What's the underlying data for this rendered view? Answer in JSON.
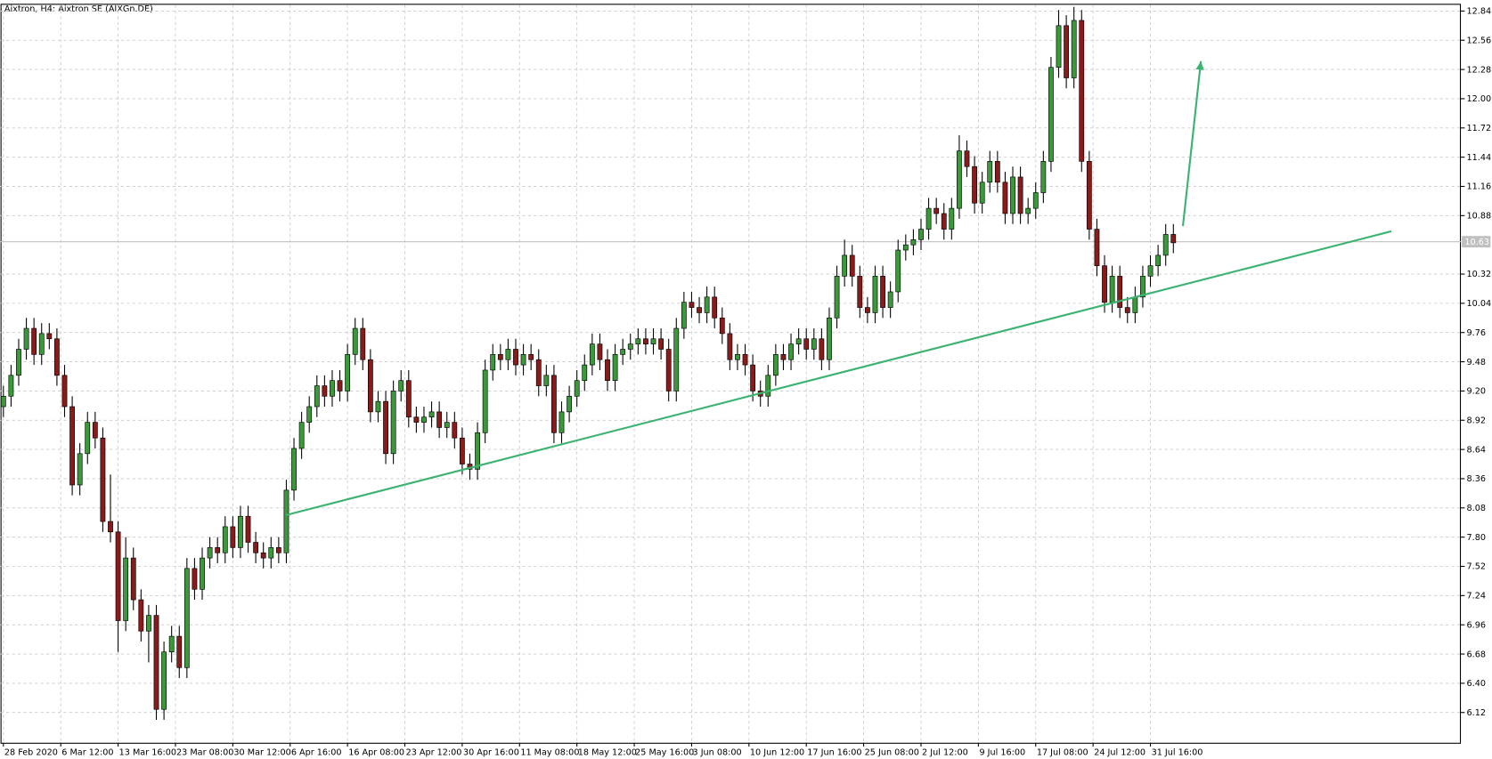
{
  "chart_data": {
    "type": "candlestick",
    "title": "Aixtron, H4:  Aixtron SE (AIXGn.DE)",
    "bull_color": "#3a9a3a",
    "bear_color": "#8b1a1a",
    "wick_color": "#000000",
    "grid": true,
    "xlim": [
      -0.375,
      190.6
    ],
    "ylim": [
      5.83,
      12.9
    ],
    "xticks": [
      {
        "value": 0,
        "label": "28 Feb 2020"
      },
      {
        "value": 7.5,
        "label": "6 Mar 12:00"
      },
      {
        "value": 15,
        "label": "13 Mar 16:00"
      },
      {
        "value": 22.5,
        "label": "23 Mar 08:00"
      },
      {
        "value": 30,
        "label": "30 Mar 12:00"
      },
      {
        "value": 37.5,
        "label": "6 Apr 16:00"
      },
      {
        "value": 45,
        "label": "16 Apr 08:00"
      },
      {
        "value": 52.5,
        "label": "23 Apr 12:00"
      },
      {
        "value": 60,
        "label": "30 Apr 16:00"
      },
      {
        "value": 67.5,
        "label": "11 May 08:00"
      },
      {
        "value": 75,
        "label": "18 May 12:00"
      },
      {
        "value": 82.5,
        "label": "25 May 16:00"
      },
      {
        "value": 90,
        "label": "3 Jun 08:00"
      },
      {
        "value": 97.5,
        "label": "10 Jun 12:00"
      },
      {
        "value": 105,
        "label": "17 Jun 16:00"
      },
      {
        "value": 112.5,
        "label": "25 Jun 08:00"
      },
      {
        "value": 120,
        "label": "2 Jul 12:00"
      },
      {
        "value": 127.5,
        "label": "9 Jul 16:00"
      },
      {
        "value": 135,
        "label": "17 Jul 08:00"
      },
      {
        "value": 142.5,
        "label": "24 Jul 12:00"
      },
      {
        "value": 150,
        "label": "31 Jul 16:00"
      }
    ],
    "yticks": [
      6.12,
      {
        "value": 6.4,
        "label": "6.40"
      },
      6.68,
      6.96,
      7.24,
      7.52,
      {
        "value": 7.8,
        "label": "7.80"
      },
      8.08,
      8.36,
      8.64,
      8.92,
      {
        "value": 9.2,
        "label": "9.20"
      },
      9.48,
      9.76,
      10.04,
      10.32,
      10.88,
      11.16,
      11.44,
      11.72,
      {
        "value": 12,
        "label": "12.00"
      },
      12.28,
      12.56,
      12.84
    ],
    "current_price": {
      "value": 10.63,
      "label": "10.63",
      "color": "#c0c0c0"
    },
    "trend_line": {
      "x": [
        36.9,
        181.5
      ],
      "y": [
        8.01,
        10.73
      ],
      "color": "#3cb371"
    },
    "arrow": {
      "x": [
        154.25,
        156.6
      ],
      "y": [
        10.78,
        12.36
      ],
      "color": "#3cb371"
    },
    "candles": [
      [
        9.05,
        9.25,
        8.95,
        9.15
      ],
      [
        9.15,
        9.45,
        9.05,
        9.35
      ],
      [
        9.35,
        9.7,
        9.25,
        9.6
      ],
      [
        9.6,
        9.9,
        9.5,
        9.8
      ],
      [
        9.8,
        9.9,
        9.45,
        9.55
      ],
      [
        9.55,
        9.85,
        9.45,
        9.75
      ],
      [
        9.75,
        9.85,
        9.6,
        9.7
      ],
      [
        9.7,
        9.8,
        9.25,
        9.35
      ],
      [
        9.35,
        9.45,
        8.95,
        9.05
      ],
      [
        9.05,
        9.15,
        8.2,
        8.3
      ],
      [
        8.3,
        8.7,
        8.2,
        8.6
      ],
      [
        8.6,
        9.0,
        8.5,
        8.9
      ],
      [
        8.9,
        9.0,
        8.65,
        8.75
      ],
      [
        8.75,
        8.85,
        7.85,
        7.95
      ],
      [
        7.95,
        8.4,
        7.75,
        7.85
      ],
      [
        7.85,
        7.95,
        6.7,
        7.0
      ],
      [
        7.0,
        7.8,
        6.9,
        7.6
      ],
      [
        7.6,
        7.7,
        7.1,
        7.2
      ],
      [
        7.2,
        7.3,
        6.8,
        6.9
      ],
      [
        6.9,
        7.15,
        6.6,
        7.05
      ],
      [
        7.05,
        7.15,
        6.05,
        6.15
      ],
      [
        6.15,
        6.8,
        6.05,
        6.7
      ],
      [
        6.7,
        6.95,
        6.6,
        6.85
      ],
      [
        6.85,
        6.95,
        6.45,
        6.55
      ],
      [
        6.55,
        7.6,
        6.45,
        7.5
      ],
      [
        7.5,
        7.6,
        7.2,
        7.3
      ],
      [
        7.3,
        7.7,
        7.2,
        7.6
      ],
      [
        7.6,
        7.8,
        7.5,
        7.7
      ],
      [
        7.7,
        7.8,
        7.55,
        7.65
      ],
      [
        7.65,
        8.0,
        7.55,
        7.9
      ],
      [
        7.9,
        8.0,
        7.6,
        7.7
      ],
      [
        7.7,
        8.1,
        7.6,
        8.0
      ],
      [
        8.0,
        8.1,
        7.65,
        7.75
      ],
      [
        7.75,
        7.85,
        7.55,
        7.65
      ],
      [
        7.65,
        7.75,
        7.5,
        7.6
      ],
      [
        7.6,
        7.8,
        7.5,
        7.7
      ],
      [
        7.7,
        7.8,
        7.55,
        7.65
      ],
      [
        7.65,
        8.35,
        7.55,
        8.25
      ],
      [
        8.25,
        8.75,
        8.15,
        8.65
      ],
      [
        8.65,
        9.0,
        8.55,
        8.9
      ],
      [
        8.9,
        9.15,
        8.8,
        9.05
      ],
      [
        9.05,
        9.35,
        8.95,
        9.25
      ],
      [
        9.25,
        9.35,
        9.05,
        9.15
      ],
      [
        9.15,
        9.4,
        9.05,
        9.3
      ],
      [
        9.3,
        9.4,
        9.1,
        9.2
      ],
      [
        9.2,
        9.65,
        9.1,
        9.55
      ],
      [
        9.55,
        9.9,
        9.45,
        9.8
      ],
      [
        9.8,
        9.9,
        9.4,
        9.5
      ],
      [
        9.5,
        9.6,
        8.9,
        9.0
      ],
      [
        9.0,
        9.2,
        8.9,
        9.1
      ],
      [
        9.1,
        9.2,
        8.5,
        8.6
      ],
      [
        8.6,
        9.3,
        8.5,
        9.2
      ],
      [
        9.2,
        9.4,
        9.1,
        9.3
      ],
      [
        9.3,
        9.4,
        8.85,
        8.95
      ],
      [
        8.95,
        9.05,
        8.8,
        8.9
      ],
      [
        8.9,
        9.05,
        8.8,
        8.95
      ],
      [
        8.95,
        9.1,
        8.85,
        9.0
      ],
      [
        9.0,
        9.1,
        8.75,
        8.85
      ],
      [
        8.85,
        9.0,
        8.75,
        8.9
      ],
      [
        8.9,
        9.0,
        8.65,
        8.75
      ],
      [
        8.75,
        8.85,
        8.4,
        8.5
      ],
      [
        8.5,
        8.6,
        8.35,
        8.45
      ],
      [
        8.45,
        8.9,
        8.35,
        8.8
      ],
      [
        8.8,
        9.5,
        8.7,
        9.4
      ],
      [
        9.4,
        9.65,
        9.3,
        9.55
      ],
      [
        9.55,
        9.65,
        9.4,
        9.5
      ],
      [
        9.5,
        9.7,
        9.4,
        9.6
      ],
      [
        9.6,
        9.7,
        9.35,
        9.45
      ],
      [
        9.45,
        9.65,
        9.35,
        9.55
      ],
      [
        9.55,
        9.65,
        9.4,
        9.5
      ],
      [
        9.5,
        9.6,
        9.15,
        9.25
      ],
      [
        9.25,
        9.45,
        9.15,
        9.35
      ],
      [
        9.35,
        9.45,
        8.7,
        8.8
      ],
      [
        8.8,
        9.1,
        8.7,
        9.0
      ],
      [
        9.0,
        9.25,
        8.9,
        9.15
      ],
      [
        9.15,
        9.4,
        9.05,
        9.3
      ],
      [
        9.3,
        9.55,
        9.2,
        9.45
      ],
      [
        9.45,
        9.75,
        9.35,
        9.65
      ],
      [
        9.65,
        9.75,
        9.4,
        9.5
      ],
      [
        9.5,
        9.6,
        9.2,
        9.3
      ],
      [
        9.3,
        9.65,
        9.2,
        9.55
      ],
      [
        9.55,
        9.7,
        9.45,
        9.6
      ],
      [
        9.6,
        9.75,
        9.5,
        9.65
      ],
      [
        9.65,
        9.8,
        9.55,
        9.7
      ],
      [
        9.7,
        9.8,
        9.55,
        9.65
      ],
      [
        9.65,
        9.8,
        9.55,
        9.7
      ],
      [
        9.7,
        9.8,
        9.5,
        9.6
      ],
      [
        9.6,
        9.7,
        9.1,
        9.2
      ],
      [
        9.2,
        9.9,
        9.1,
        9.8
      ],
      [
        9.8,
        10.15,
        9.7,
        10.05
      ],
      [
        10.05,
        10.15,
        9.9,
        10.0
      ],
      [
        10.0,
        10.1,
        9.85,
        9.95
      ],
      [
        9.95,
        10.2,
        9.85,
        10.1
      ],
      [
        10.1,
        10.2,
        9.8,
        9.9
      ],
      [
        9.9,
        10.0,
        9.65,
        9.75
      ],
      [
        9.75,
        9.85,
        9.4,
        9.5
      ],
      [
        9.5,
        9.65,
        9.4,
        9.55
      ],
      [
        9.55,
        9.65,
        9.35,
        9.45
      ],
      [
        9.45,
        9.55,
        9.1,
        9.2
      ],
      [
        9.2,
        9.3,
        9.05,
        9.15
      ],
      [
        9.15,
        9.45,
        9.05,
        9.35
      ],
      [
        9.35,
        9.65,
        9.25,
        9.55
      ],
      [
        9.55,
        9.65,
        9.4,
        9.5
      ],
      [
        9.5,
        9.75,
        9.4,
        9.65
      ],
      [
        9.65,
        9.8,
        9.55,
        9.7
      ],
      [
        9.7,
        9.8,
        9.5,
        9.6
      ],
      [
        9.6,
        9.8,
        9.5,
        9.7
      ],
      [
        9.7,
        9.8,
        9.4,
        9.5
      ],
      [
        9.5,
        10.0,
        9.4,
        9.9
      ],
      [
        9.9,
        10.4,
        9.8,
        10.3
      ],
      [
        10.3,
        10.65,
        10.2,
        10.5
      ],
      [
        10.5,
        10.6,
        10.2,
        10.3
      ],
      [
        10.3,
        10.4,
        9.9,
        10.0
      ],
      [
        10.0,
        10.1,
        9.85,
        9.95
      ],
      [
        9.95,
        10.4,
        9.85,
        10.3
      ],
      [
        10.3,
        10.4,
        9.9,
        10.0
      ],
      [
        10.0,
        10.25,
        9.9,
        10.15
      ],
      [
        10.15,
        10.65,
        10.05,
        10.55
      ],
      [
        10.55,
        10.7,
        10.45,
        10.6
      ],
      [
        10.6,
        10.75,
        10.5,
        10.65
      ],
      [
        10.65,
        10.85,
        10.55,
        10.75
      ],
      [
        10.75,
        11.05,
        10.65,
        10.95
      ],
      [
        10.95,
        11.05,
        10.8,
        10.9
      ],
      [
        10.9,
        11.0,
        10.65,
        10.75
      ],
      [
        10.75,
        11.05,
        10.65,
        10.95
      ],
      [
        10.95,
        11.65,
        10.85,
        11.5
      ],
      [
        11.5,
        11.6,
        11.25,
        11.35
      ],
      [
        11.35,
        11.45,
        10.9,
        11.0
      ],
      [
        11.0,
        11.3,
        10.9,
        11.2
      ],
      [
        11.2,
        11.5,
        11.1,
        11.4
      ],
      [
        11.4,
        11.5,
        11.1,
        11.2
      ],
      [
        11.2,
        11.3,
        10.8,
        10.9
      ],
      [
        10.9,
        11.35,
        10.8,
        11.25
      ],
      [
        11.25,
        11.35,
        10.8,
        10.9
      ],
      [
        10.9,
        11.05,
        10.8,
        10.95
      ],
      [
        10.95,
        11.2,
        10.85,
        11.1
      ],
      [
        11.1,
        11.5,
        11.0,
        11.4
      ],
      [
        11.4,
        12.4,
        11.3,
        12.3
      ],
      [
        12.3,
        12.85,
        12.2,
        12.7
      ],
      [
        12.7,
        12.8,
        12.1,
        12.2
      ],
      [
        12.2,
        12.88,
        12.1,
        12.75
      ],
      [
        12.75,
        12.85,
        11.3,
        11.4
      ],
      [
        11.4,
        11.5,
        10.65,
        10.75
      ],
      [
        10.75,
        10.85,
        10.3,
        10.4
      ],
      [
        10.4,
        10.5,
        9.95,
        10.05
      ],
      [
        10.05,
        10.4,
        9.95,
        10.3
      ],
      [
        10.3,
        10.4,
        9.9,
        10.0
      ],
      [
        10.0,
        10.1,
        9.85,
        9.95
      ],
      [
        9.95,
        10.2,
        9.85,
        10.1
      ],
      [
        10.1,
        10.4,
        10.0,
        10.3
      ],
      [
        10.3,
        10.5,
        10.2,
        10.4
      ],
      [
        10.4,
        10.6,
        10.3,
        10.5
      ],
      [
        10.5,
        10.8,
        10.4,
        10.7
      ],
      [
        10.7,
        10.8,
        10.52,
        10.62
      ]
    ]
  }
}
